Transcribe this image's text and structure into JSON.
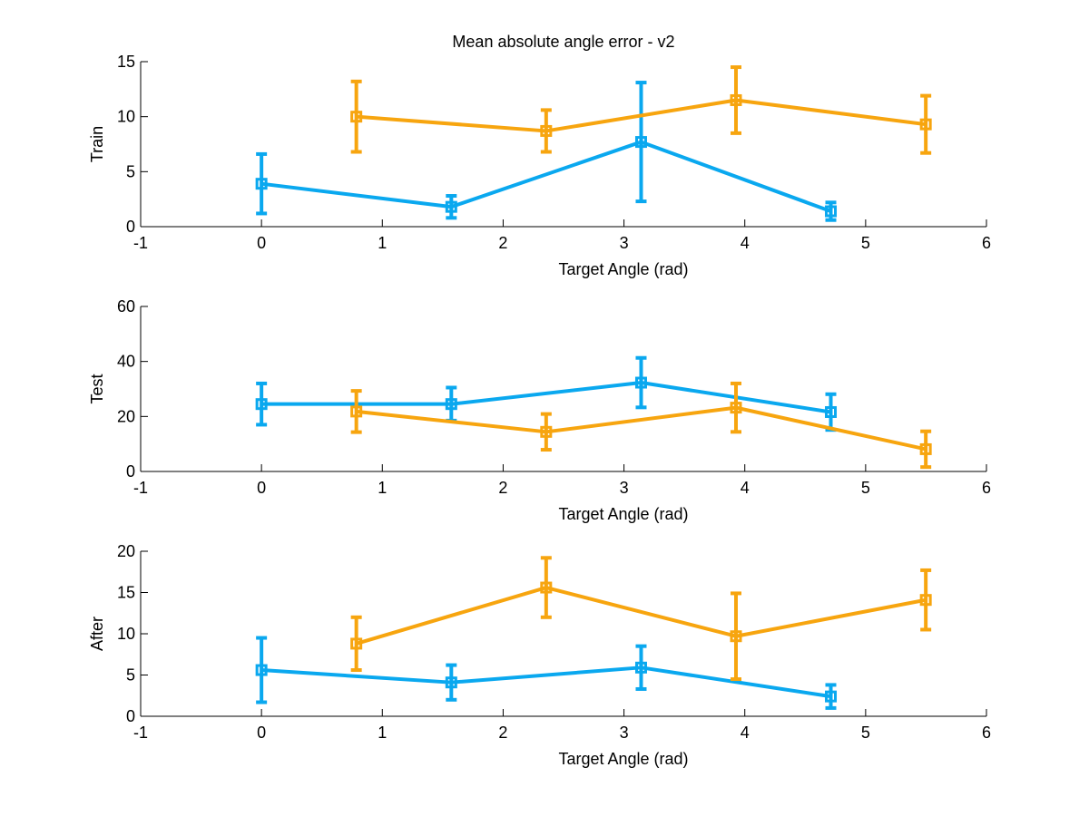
{
  "figure": {
    "title": "Mean absolute angle error - v2"
  },
  "colors": {
    "series_a": "#0aa8ef",
    "series_b": "#f7a50f",
    "axis": "#000000",
    "background": "#ffffff"
  },
  "chart_data": [
    {
      "type": "line",
      "title": "Mean absolute angle error - v2",
      "xlabel": "Target Angle (rad)",
      "ylabel": "Train",
      "xlim": [
        -1,
        6
      ],
      "ylim": [
        0,
        15
      ],
      "xticks": [
        -1,
        0,
        1,
        2,
        3,
        4,
        5,
        6
      ],
      "yticks": [
        0,
        5,
        10,
        15
      ],
      "grid": false,
      "marker": "square",
      "error_bars": true,
      "series": [
        {
          "color": "#0aa8ef",
          "x": [
            0,
            1.571,
            3.142,
            4.712
          ],
          "y": [
            3.9,
            1.8,
            7.7,
            1.4
          ],
          "err": [
            2.7,
            1.0,
            5.4,
            0.8
          ]
        },
        {
          "color": "#f7a50f",
          "x": [
            0.785,
            2.356,
            3.927,
            5.498
          ],
          "y": [
            10.0,
            8.7,
            11.5,
            9.3
          ],
          "err": [
            3.2,
            1.9,
            3.0,
            2.6
          ]
        }
      ]
    },
    {
      "type": "line",
      "title": "",
      "xlabel": "Target Angle (rad)",
      "ylabel": "Test",
      "xlim": [
        -1,
        6
      ],
      "ylim": [
        0,
        60
      ],
      "xticks": [
        -1,
        0,
        1,
        2,
        3,
        4,
        5,
        6
      ],
      "yticks": [
        0,
        20,
        40,
        60
      ],
      "grid": false,
      "marker": "square",
      "error_bars": true,
      "series": [
        {
          "color": "#0aa8ef",
          "x": [
            0,
            1.571,
            3.142,
            4.712
          ],
          "y": [
            24.5,
            24.5,
            32.3,
            21.6
          ],
          "err": [
            7.5,
            6.0,
            9.0,
            6.5
          ]
        },
        {
          "color": "#f7a50f",
          "x": [
            0.785,
            2.356,
            3.927,
            5.498
          ],
          "y": [
            21.8,
            14.4,
            23.2,
            8.1
          ],
          "err": [
            7.5,
            6.5,
            8.8,
            6.5
          ]
        }
      ]
    },
    {
      "type": "line",
      "title": "",
      "xlabel": "Target Angle (rad)",
      "ylabel": "After",
      "xlim": [
        -1,
        6
      ],
      "ylim": [
        0,
        20
      ],
      "xticks": [
        -1,
        0,
        1,
        2,
        3,
        4,
        5,
        6
      ],
      "yticks": [
        0,
        5,
        10,
        15,
        20
      ],
      "grid": false,
      "marker": "square",
      "error_bars": true,
      "series": [
        {
          "color": "#0aa8ef",
          "x": [
            0,
            1.571,
            3.142,
            4.712
          ],
          "y": [
            5.6,
            4.1,
            5.9,
            2.4
          ],
          "err": [
            3.9,
            2.1,
            2.6,
            1.4
          ]
        },
        {
          "color": "#f7a50f",
          "x": [
            0.785,
            2.356,
            3.927,
            5.498
          ],
          "y": [
            8.8,
            15.6,
            9.7,
            14.1
          ],
          "err": [
            3.2,
            3.6,
            5.2,
            3.6
          ]
        }
      ]
    }
  ]
}
